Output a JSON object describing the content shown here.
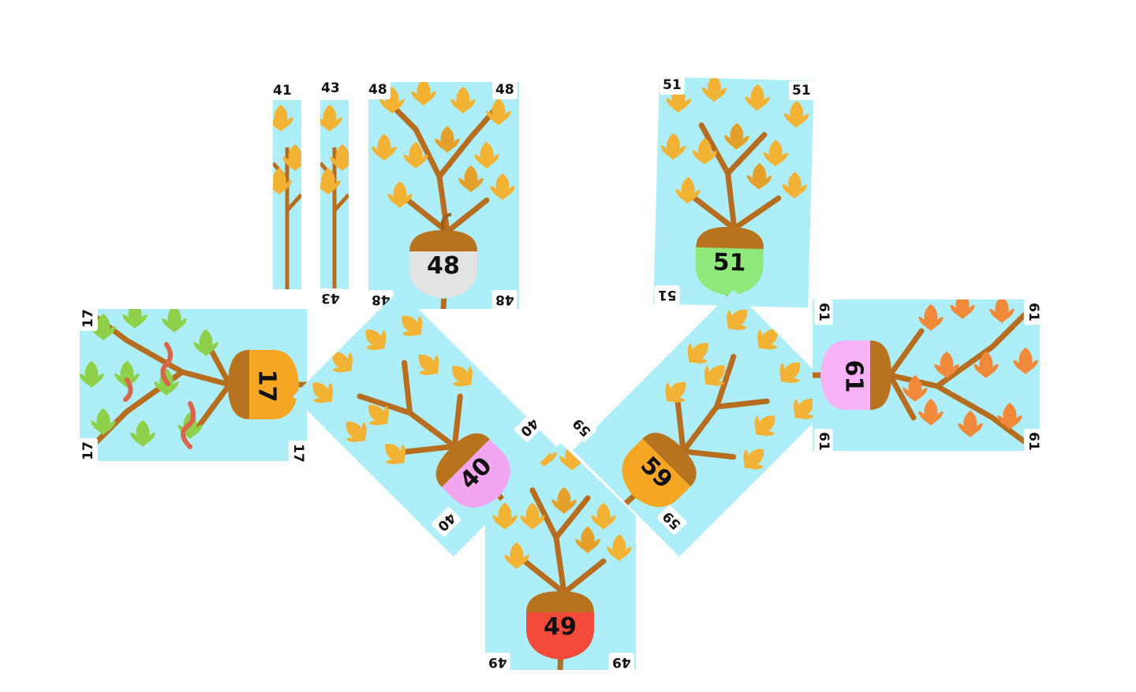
{
  "colors": {
    "background": "#ffffff",
    "card_sky": "#aeeef8",
    "branch": "#b66d1f",
    "leaf_autumn": "#f2b233",
    "leaf_autumn_dark": "#e3a02a",
    "leaf_green": "#8fd04a",
    "leaf_orange": "#f08a3a",
    "acorn_cap": "#b8731e",
    "acorn_cap_dark": "#9a5f16"
  },
  "cards": [
    {
      "id": "41",
      "value": "41",
      "acorn_color": "#f5a623",
      "leaf": "autumn",
      "visible": "sliver"
    },
    {
      "id": "43",
      "value": "43",
      "acorn_color": "#f5a623",
      "leaf": "autumn",
      "visible": "sliver"
    },
    {
      "id": "48",
      "value": "48",
      "acorn_color": "#e3e3e3",
      "leaf": "autumn",
      "visible": "full"
    },
    {
      "id": "51",
      "value": "51",
      "acorn_color": "#8ee87a",
      "leaf": "autumn",
      "visible": "full"
    },
    {
      "id": "17",
      "value": "17",
      "acorn_color": "#f5a623",
      "leaf": "green",
      "worms": true,
      "visible": "full"
    },
    {
      "id": "40",
      "value": "40",
      "acorn_color": "#f3a6f0",
      "leaf": "autumn",
      "visible": "full"
    },
    {
      "id": "59",
      "value": "59",
      "acorn_color": "#f5a623",
      "leaf": "autumn",
      "visible": "full"
    },
    {
      "id": "61",
      "value": "61",
      "acorn_color": "#f7b3f5",
      "leaf": "orange",
      "visible": "full"
    },
    {
      "id": "49",
      "value": "49",
      "acorn_color": "#f44a3a",
      "leaf": "autumn",
      "visible": "full"
    }
  ]
}
